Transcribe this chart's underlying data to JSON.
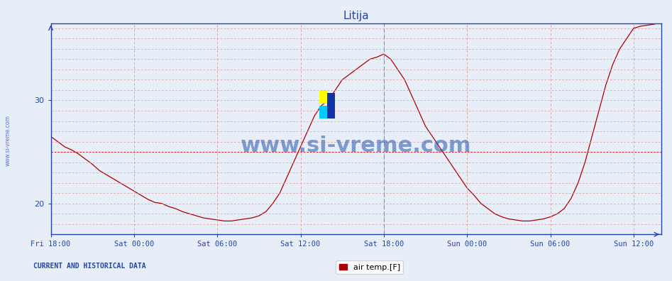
{
  "title": "Litija",
  "ylabel": "",
  "xlabel": "",
  "bg_color": "#e8eef8",
  "line_color": "#aa0000",
  "grid_color": "#dd9999",
  "axis_color": "#2244aa",
  "yticks": [
    20,
    30
  ],
  "ylim": [
    17.0,
    37.5
  ],
  "xlim_hours": [
    0,
    44
  ],
  "xtick_labels": [
    "Fri 18:00",
    "Sat 00:00",
    "Sat 06:00",
    "Sat 12:00",
    "Sat 18:00",
    "Sun 00:00",
    "Sun 06:00",
    "Sun 12:00"
  ],
  "xtick_positions": [
    0,
    6,
    12,
    18,
    24,
    30,
    36,
    42
  ],
  "vline_pos": 24,
  "hline_val": 25.0,
  "legend_label": "air temp.[F]",
  "watermark": "www.si-vreme.com",
  "footer_text": "CURRENT AND HISTORICAL DATA",
  "sidewater": "www.si-vreme.com",
  "data_x": [
    0,
    0.5,
    1.0,
    1.5,
    2.0,
    2.5,
    3.0,
    3.5,
    4.0,
    4.5,
    5.0,
    5.5,
    6.0,
    6.5,
    7.0,
    7.5,
    8.0,
    8.5,
    9.0,
    9.5,
    10.0,
    10.5,
    11.0,
    11.5,
    12.0,
    12.5,
    13.0,
    13.5,
    14.0,
    14.5,
    15.0,
    15.5,
    16.0,
    16.5,
    17.0,
    17.5,
    18.0,
    18.5,
    19.0,
    19.5,
    20.0,
    20.5,
    21.0,
    21.5,
    22.0,
    22.5,
    23.0,
    23.5,
    24.0,
    24.5,
    25.0,
    25.5,
    26.0,
    26.5,
    27.0,
    27.5,
    28.0,
    28.5,
    29.0,
    29.5,
    30.0,
    30.5,
    31.0,
    31.5,
    32.0,
    32.5,
    33.0,
    33.5,
    34.0,
    34.5,
    35.0,
    35.5,
    36.0,
    36.5,
    37.0,
    37.5,
    38.0,
    38.5,
    39.0,
    39.5,
    40.0,
    40.5,
    41.0,
    41.5,
    42.0,
    42.5,
    43.0,
    43.5
  ],
  "data_y": [
    26.5,
    26.0,
    25.5,
    25.2,
    24.8,
    24.3,
    23.8,
    23.2,
    22.8,
    22.4,
    22.0,
    21.6,
    21.2,
    20.8,
    20.4,
    20.1,
    20.0,
    19.7,
    19.5,
    19.2,
    19.0,
    18.8,
    18.6,
    18.5,
    18.4,
    18.3,
    18.3,
    18.4,
    18.5,
    18.6,
    18.8,
    19.2,
    20.0,
    21.0,
    22.5,
    24.0,
    25.5,
    27.0,
    28.5,
    29.5,
    30.0,
    31.0,
    32.0,
    32.5,
    33.0,
    33.5,
    34.0,
    34.2,
    34.5,
    34.0,
    33.0,
    32.0,
    30.5,
    29.0,
    27.5,
    26.5,
    25.5,
    24.5,
    23.5,
    22.5,
    21.5,
    20.8,
    20.0,
    19.5,
    19.0,
    18.7,
    18.5,
    18.4,
    18.3,
    18.3,
    18.4,
    18.5,
    18.7,
    19.0,
    19.5,
    20.5,
    22.0,
    24.0,
    26.5,
    29.0,
    31.5,
    33.5,
    35.0,
    36.0,
    37.0,
    37.2,
    37.3,
    37.4
  ]
}
